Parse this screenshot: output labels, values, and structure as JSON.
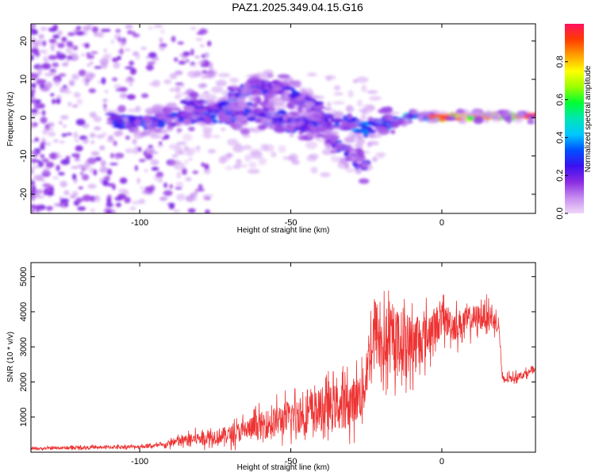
{
  "title": "PAZ1.2025.349.04.15.G16",
  "chart_data": [
    {
      "type": "heatmap",
      "xlabel": "Height of straight line (km)",
      "ylabel": "Frequency (Hz)",
      "xlim": [
        -136,
        31
      ],
      "ylim": [
        -25,
        24.5
      ],
      "xticks": [
        -100,
        -50,
        0
      ],
      "xtick_labels": [
        "-100",
        "-50",
        "0"
      ],
      "yticks": [
        -20,
        -10,
        0,
        10,
        20
      ],
      "ytick_labels": [
        "-20",
        "-10",
        "0",
        "10",
        "20"
      ],
      "colorbar": {
        "label": "Normalized spectral amplitude",
        "range": [
          0,
          1
        ],
        "ticks": [
          0.0,
          0.2,
          0.4,
          0.6,
          0.8
        ],
        "tick_labels": [
          "0.0",
          "0.2",
          "0.4",
          "0.6",
          "0.8"
        ],
        "colormap": [
          "#f0d8f8",
          "#c68cf0",
          "#8a2be2",
          "#3a10f0",
          "#0050ff",
          "#00c8ff",
          "#00e6b4",
          "#00ff32",
          "#9aff00",
          "#ffff00",
          "#ffa000",
          "#ff3c00",
          "#ff1060"
        ]
      },
      "ridges": [
        {
          "x": [
            -110,
            -100,
            -90,
            -80,
            -70,
            -60,
            -50,
            -40,
            -30,
            -25,
            -20,
            -15,
            -10,
            -5,
            0,
            10,
            20,
            31
          ],
          "y": [
            -0.5,
            -1.5,
            -0.5,
            0.5,
            0.5,
            0,
            -2,
            -1,
            -1.5,
            -3,
            -1.5,
            -1,
            0.5,
            0.3,
            0,
            0.3,
            0.5,
            0
          ]
        },
        {
          "x": [
            -85,
            -75,
            -60,
            -50,
            -40,
            -35,
            -30,
            -27,
            -25
          ],
          "y": [
            3,
            3,
            2,
            0,
            -4,
            -7,
            -10,
            -12,
            -13
          ]
        },
        {
          "x": [
            -70,
            -62,
            -55,
            -50,
            -45,
            -40
          ],
          "y": [
            6,
            8,
            8,
            6,
            4,
            2
          ]
        }
      ]
    },
    {
      "type": "line",
      "xlabel": "Height of straight line (km)",
      "ylabel": "SNR (10 * v/v)",
      "xlim": [
        -136,
        31
      ],
      "ylim": [
        0,
        5400
      ],
      "xticks": [
        -100,
        -50,
        0
      ],
      "xtick_labels": [
        "-100",
        "-50",
        "0"
      ],
      "yticks": [
        1000,
        2000,
        3000,
        4000,
        5000
      ],
      "ytick_labels": [
        "1000",
        "2000",
        "3000",
        "4000",
        "5000"
      ],
      "line_color": "#ee3333",
      "x": [
        -136,
        -120,
        -100,
        -92,
        -88,
        -80,
        -70,
        -60,
        -50,
        -40,
        -30,
        -26,
        -24,
        -22,
        -20,
        -15,
        -10,
        -5,
        0,
        5,
        10,
        15,
        18,
        19,
        20,
        25,
        31
      ],
      "y": [
        100,
        130,
        160,
        200,
        300,
        400,
        500,
        750,
        1000,
        1200,
        1400,
        1700,
        2800,
        3500,
        3000,
        3200,
        3100,
        3300,
        3800,
        3600,
        3800,
        3900,
        3700,
        3500,
        2050,
        2150,
        2350
      ],
      "spread": [
        60,
        80,
        90,
        120,
        250,
        350,
        450,
        700,
        900,
        1100,
        1200,
        1300,
        1600,
        1800,
        1700,
        1600,
        1500,
        1200,
        900,
        800,
        700,
        600,
        500,
        300,
        250,
        200,
        150
      ]
    }
  ]
}
